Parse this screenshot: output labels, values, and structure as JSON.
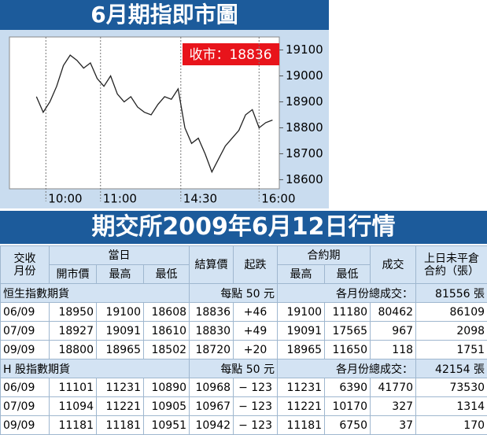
{
  "chart_data": {
    "type": "line",
    "title": "6月期指即市圖",
    "annotation": "收市：18836",
    "color": "#222222",
    "x": [
      0,
      1,
      2,
      3,
      4,
      5,
      6,
      7,
      8,
      9,
      10,
      11,
      12,
      13,
      14,
      15,
      16,
      17,
      18,
      19,
      20,
      21,
      22,
      23,
      24,
      25,
      26,
      27,
      28,
      29,
      30,
      31,
      32,
      33,
      34,
      35
    ],
    "values": [
      18920,
      18860,
      18900,
      18960,
      19040,
      19080,
      19060,
      19030,
      19050,
      18990,
      18960,
      19000,
      18930,
      18900,
      18920,
      18880,
      18860,
      18850,
      18890,
      18920,
      18910,
      18950,
      18800,
      18740,
      18760,
      18700,
      18630,
      18680,
      18730,
      18760,
      18790,
      18850,
      18870,
      18800,
      18820,
      18830
    ],
    "xlim": [
      -4,
      36
    ],
    "xticks": [
      {
        "value": 1.4,
        "label": "10:00"
      },
      {
        "value": 9.5,
        "label": "11:00"
      },
      {
        "value": 21.4,
        "label": "14:30"
      },
      {
        "value": 33,
        "label": "16:00"
      }
    ],
    "ylim": [
      18565,
      19150
    ],
    "yticks": [
      18600,
      18700,
      18800,
      18900,
      19000,
      19100
    ]
  },
  "table": {
    "title": "期交所2009年6月12日行情",
    "head": {
      "month": [
        "交收",
        "月份"
      ],
      "day": "當日",
      "settle": "結算價",
      "change": "起跌",
      "contract": "合約期",
      "volume": "成交",
      "oi": [
        "上日未平倉",
        "合約（張）"
      ],
      "sub": [
        "開市價",
        "最高",
        "最低",
        "最高",
        "最低"
      ]
    },
    "sections": [
      {
        "name": "恒生指數期貨",
        "unit": "每點 50 元",
        "total_label": "各月份總成交：",
        "total": "81556 張",
        "rows": [
          [
            "06/09",
            "18950",
            "19100",
            "18608",
            "18836",
            "+46",
            "19100",
            "11180",
            "80462",
            "86109"
          ],
          [
            "07/09",
            "18927",
            "19091",
            "18610",
            "18830",
            "+49",
            "19091",
            "17565",
            "967",
            "2098"
          ],
          [
            "09/09",
            "18800",
            "18965",
            "18502",
            "18720",
            "+20",
            "18965",
            "11650",
            "118",
            "1751"
          ]
        ]
      },
      {
        "name": "H 股指數期貨",
        "unit": "每點 50 元",
        "total_label": "各月份總成交：",
        "total": "42154 張",
        "rows": [
          [
            "06/09",
            "11101",
            "11231",
            "10890",
            "10968",
            "− 123",
            "11231",
            "6390",
            "41770",
            "73530"
          ],
          [
            "07/09",
            "11094",
            "11221",
            "10905",
            "10967",
            "− 123",
            "11221",
            "10170",
            "327",
            "1314"
          ],
          [
            "09/09",
            "11181",
            "11181",
            "10951",
            "10942",
            "− 123",
            "11181",
            "6750",
            "37",
            "170"
          ]
        ]
      }
    ]
  }
}
